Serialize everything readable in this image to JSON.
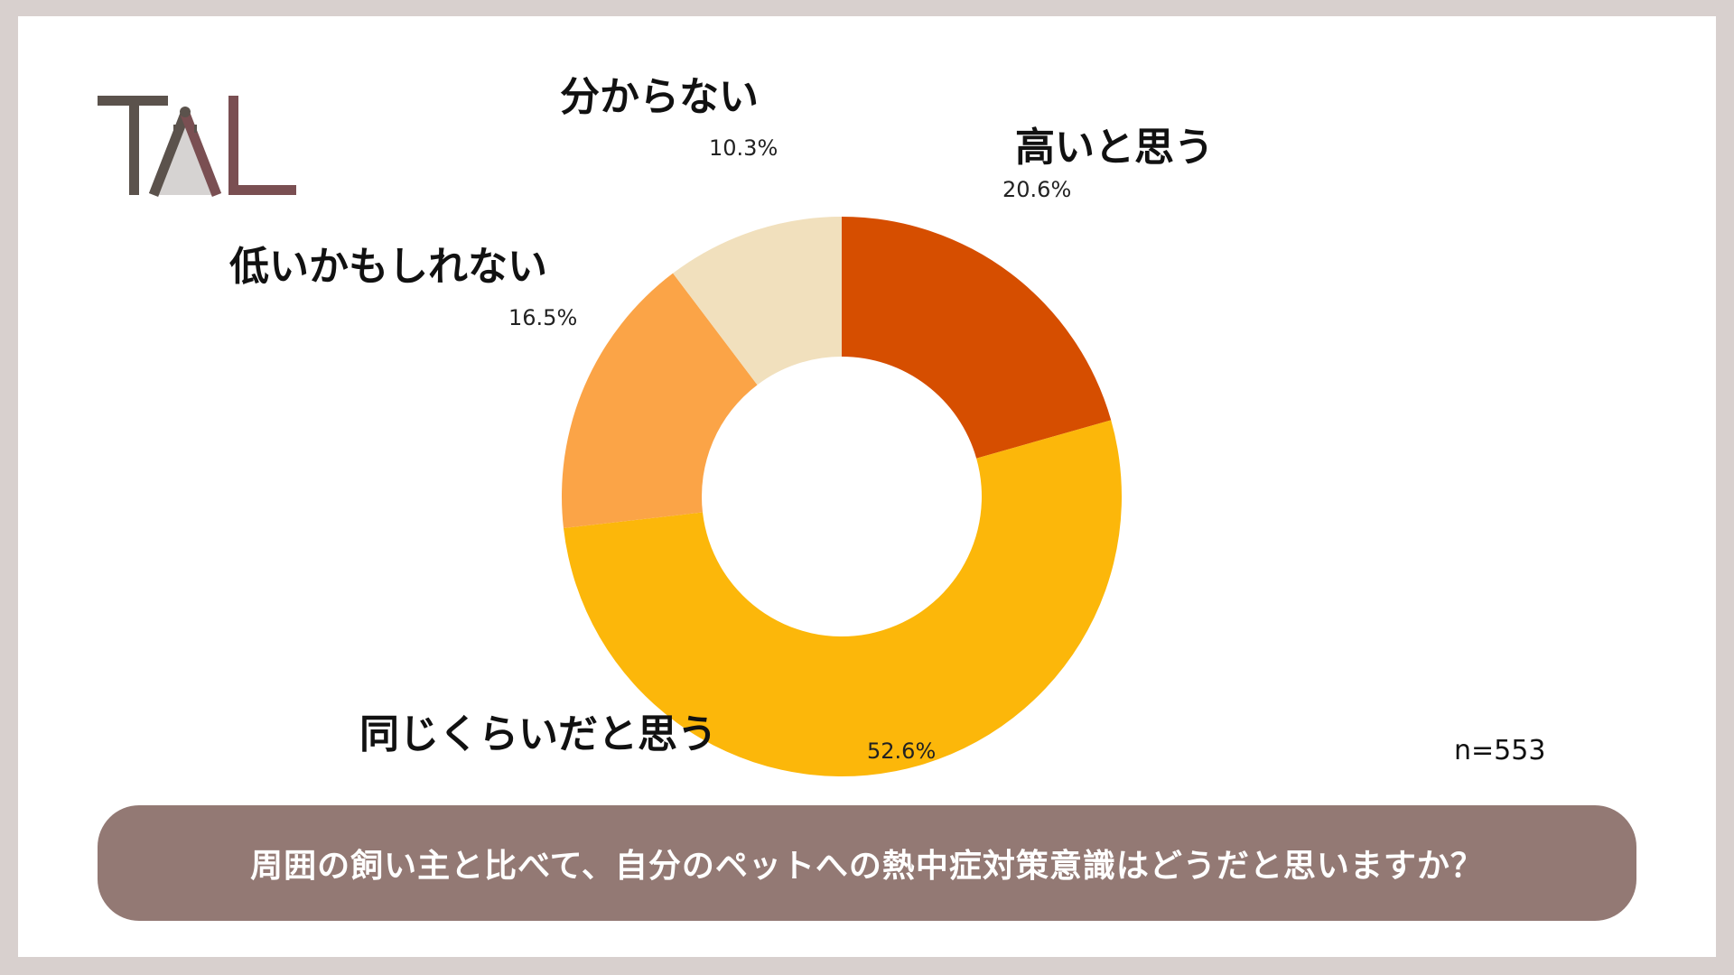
{
  "logo": {
    "text": "TAL",
    "colors": {
      "dark": "#5b524c",
      "accent": "#7a4f52",
      "light": "#d6d3d2"
    }
  },
  "chart_data": {
    "type": "pie",
    "donut": true,
    "categories": [
      "高いと思う",
      "同じくらいだと思う",
      "低いかもしれない",
      "分からない"
    ],
    "values": [
      20.6,
      52.6,
      16.5,
      10.3
    ],
    "value_labels": [
      "20.6%",
      "52.6%",
      "16.5%",
      "10.3%"
    ],
    "colors": [
      "#d64e00",
      "#fcb70a",
      "#fba447",
      "#f1e0bd"
    ],
    "start_angle": "top",
    "direction": "clockwise"
  },
  "n_label": "n=553",
  "question": "周囲の飼い主と比べて、自分のペットへの熱中症対策意識はどうだと思いますか？"
}
